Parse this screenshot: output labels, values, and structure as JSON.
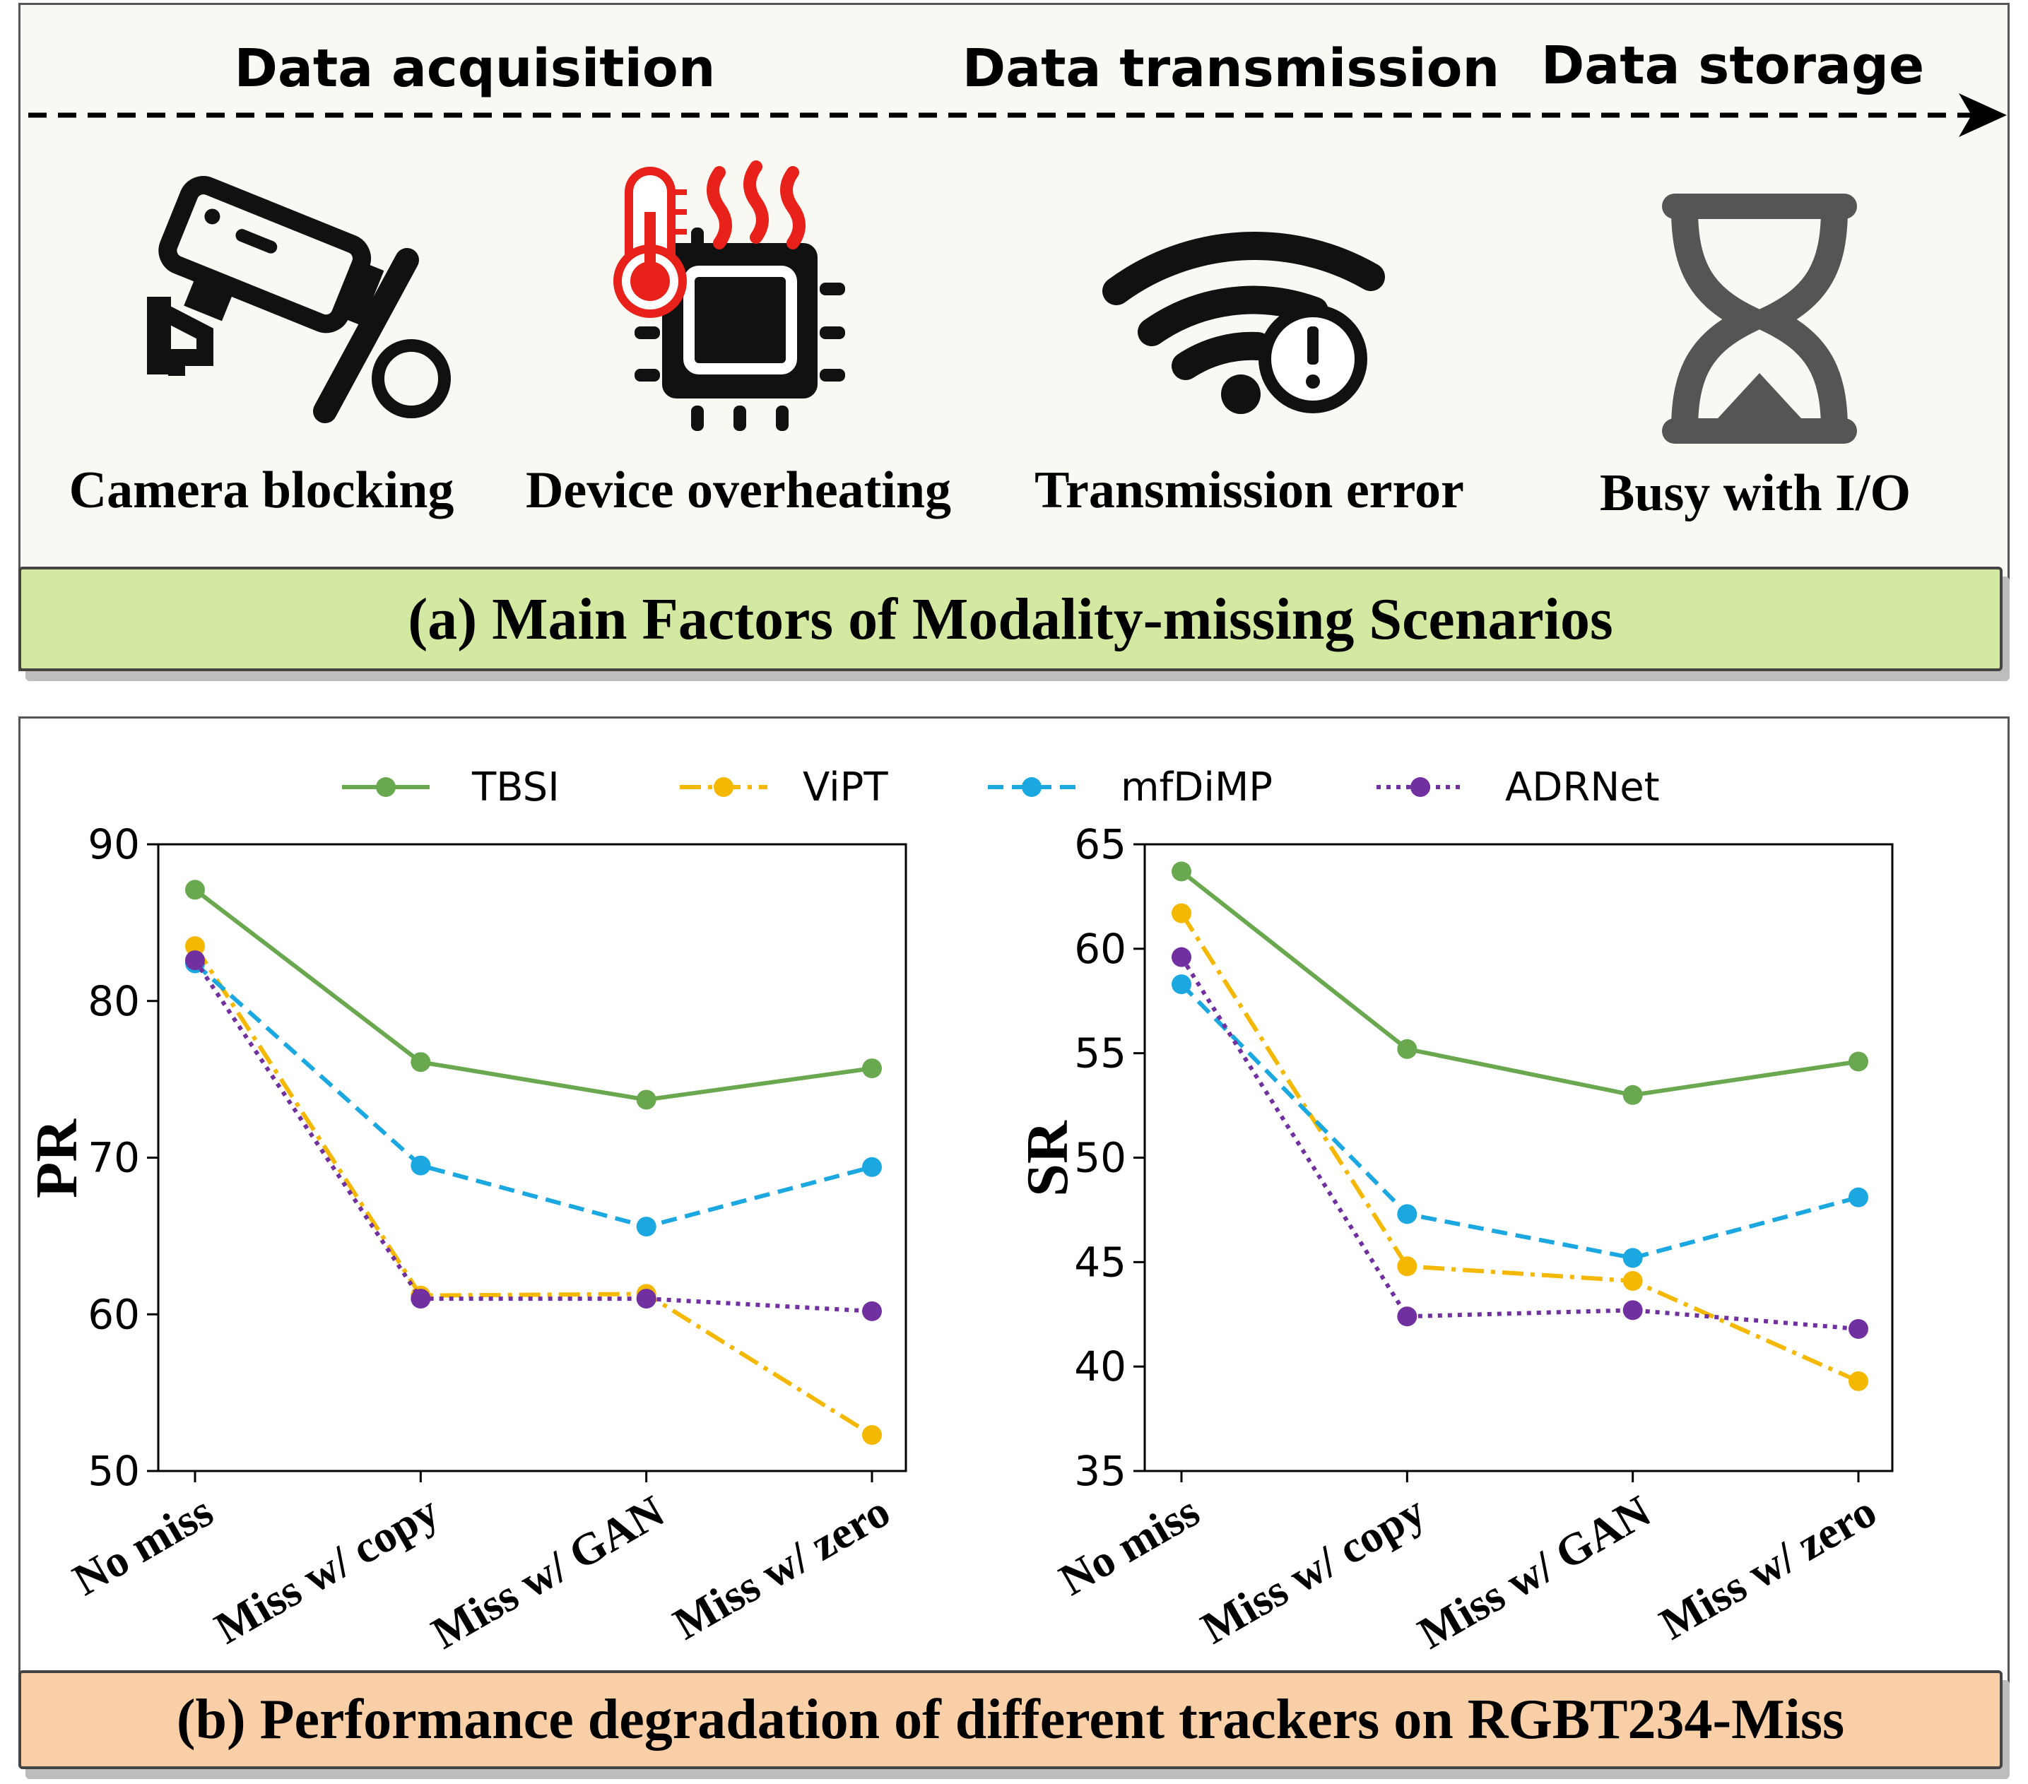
{
  "panel_a": {
    "stages": [
      "Data acquisition",
      "Data transmission",
      "Data storage"
    ],
    "factors": [
      {
        "label": "Camera blocking",
        "icon": "camera-blocked-icon"
      },
      {
        "label": "Device overheating",
        "icon": "overheating-chip-icon"
      },
      {
        "label": "Transmission error",
        "icon": "wifi-error-icon"
      },
      {
        "label": "Busy with I/O",
        "icon": "hourglass-icon"
      }
    ],
    "caption": "(a) Main Factors of Modality-missing Scenarios",
    "colors": {
      "background": "#faf8f2",
      "caption_bg": "#d3e8a0",
      "heat": "#e8221a",
      "hourglass": "#555555"
    }
  },
  "panel_b": {
    "caption": "(b) Performance degradation of different trackers on RGBT234-Miss",
    "colors": {
      "caption_bg": "#f8cfa6"
    }
  },
  "chart_data": [
    {
      "type": "line",
      "title": "",
      "xlabel": "",
      "ylabel": "PR",
      "categories": [
        "No miss",
        "Miss w/ copy",
        "Miss w/ GAN",
        "Miss w/ zero"
      ],
      "ylim": [
        50,
        90
      ],
      "yticks": [
        50,
        60,
        70,
        80,
        90
      ],
      "series": [
        {
          "name": "TBSI",
          "color": "#6aa84f",
          "dash": "solid",
          "values": [
            87.1,
            76.1,
            73.7,
            75.7
          ]
        },
        {
          "name": "ViPT",
          "color": "#f5b800",
          "dash": "dashdot",
          "values": [
            83.5,
            61.2,
            61.3,
            52.3
          ]
        },
        {
          "name": "mfDiMP",
          "color": "#1ba7e0",
          "dash": "dashed",
          "values": [
            82.4,
            69.5,
            65.6,
            69.4
          ]
        },
        {
          "name": "ADRNet",
          "color": "#7030a0",
          "dash": "dotted",
          "values": [
            82.6,
            61.0,
            61.0,
            60.2
          ]
        }
      ],
      "legend": "top-center"
    },
    {
      "type": "line",
      "title": "",
      "xlabel": "",
      "ylabel": "SR",
      "categories": [
        "No miss",
        "Miss w/ copy",
        "Miss w/ GAN",
        "Miss w/ zero"
      ],
      "ylim": [
        35,
        65
      ],
      "yticks": [
        35,
        40,
        45,
        50,
        55,
        60,
        65
      ],
      "series": [
        {
          "name": "TBSI",
          "color": "#6aa84f",
          "dash": "solid",
          "values": [
            63.7,
            55.2,
            53.0,
            54.6
          ]
        },
        {
          "name": "ViPT",
          "color": "#f5b800",
          "dash": "dashdot",
          "values": [
            61.7,
            44.8,
            44.1,
            39.3
          ]
        },
        {
          "name": "mfDiMP",
          "color": "#1ba7e0",
          "dash": "dashed",
          "values": [
            58.3,
            47.3,
            45.2,
            48.1
          ]
        },
        {
          "name": "ADRNet",
          "color": "#7030a0",
          "dash": "dotted",
          "values": [
            59.6,
            42.4,
            42.7,
            41.8
          ]
        }
      ],
      "legend": "top-center"
    }
  ]
}
